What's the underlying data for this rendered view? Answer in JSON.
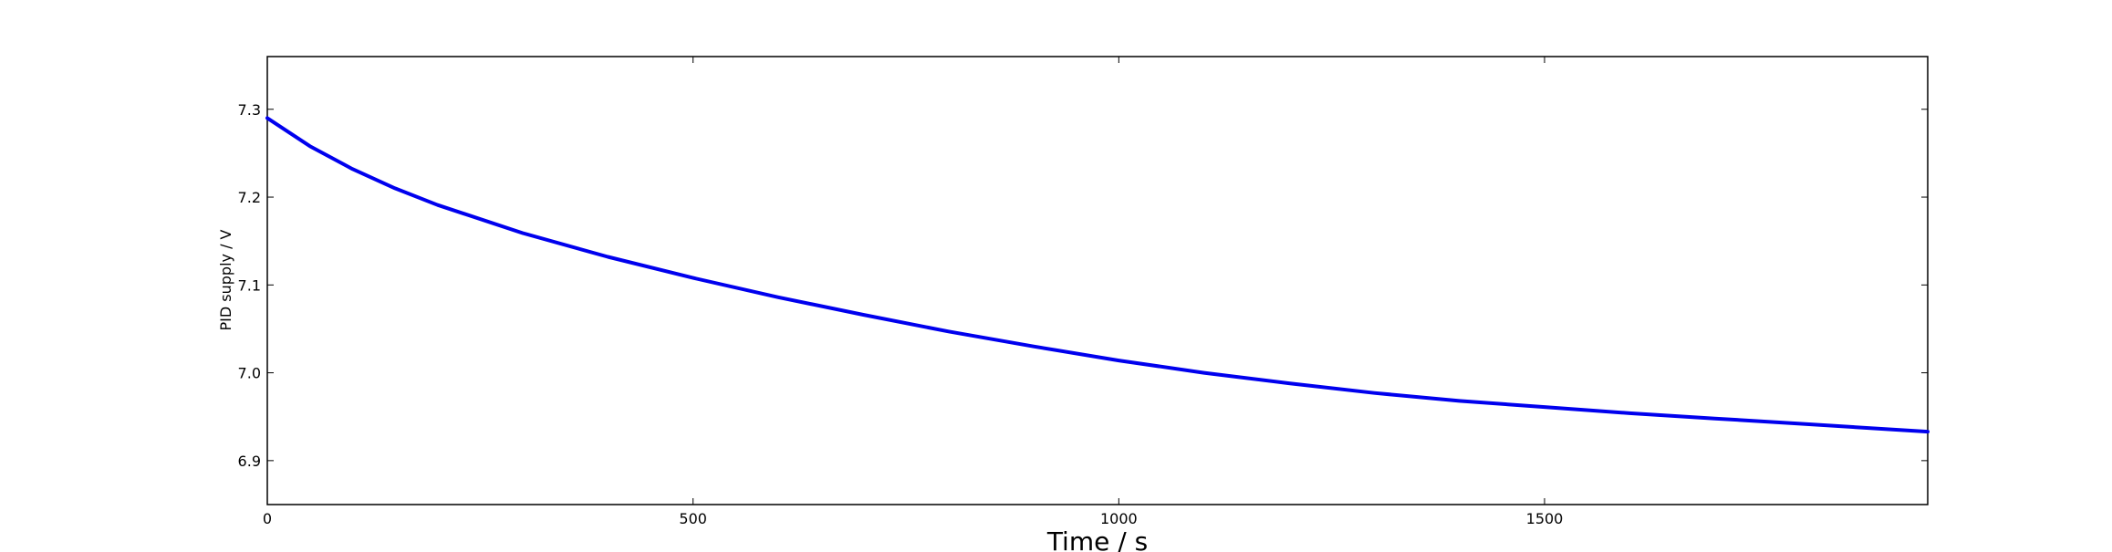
{
  "chart_data": {
    "type": "line",
    "title": "",
    "xlabel": "Time / s",
    "ylabel": "PID supply / V",
    "xlim": [
      0,
      1950
    ],
    "ylim": [
      6.85,
      7.36
    ],
    "xticks": [
      0,
      500,
      1000,
      1500
    ],
    "yticks": [
      6.9,
      7.0,
      7.1,
      7.2,
      7.3
    ],
    "x_tick_labels": [
      "0",
      "500",
      "1000",
      "1500"
    ],
    "y_tick_labels": [
      "6.9",
      "7.0",
      "7.1",
      "7.2",
      "7.3"
    ],
    "grid": false,
    "series": [
      {
        "color": "#0000ee",
        "x": [
          0,
          50,
          100,
          150,
          200,
          300,
          400,
          500,
          600,
          700,
          800,
          900,
          1000,
          1100,
          1200,
          1300,
          1400,
          1500,
          1600,
          1700,
          1800,
          1900,
          1950
        ],
        "y": [
          7.29,
          7.258,
          7.232,
          7.21,
          7.191,
          7.159,
          7.132,
          7.108,
          7.086,
          7.066,
          7.047,
          7.03,
          7.014,
          7.0,
          6.988,
          6.977,
          6.968,
          6.961,
          6.954,
          6.948,
          6.942,
          6.936,
          6.933
        ]
      }
    ]
  }
}
